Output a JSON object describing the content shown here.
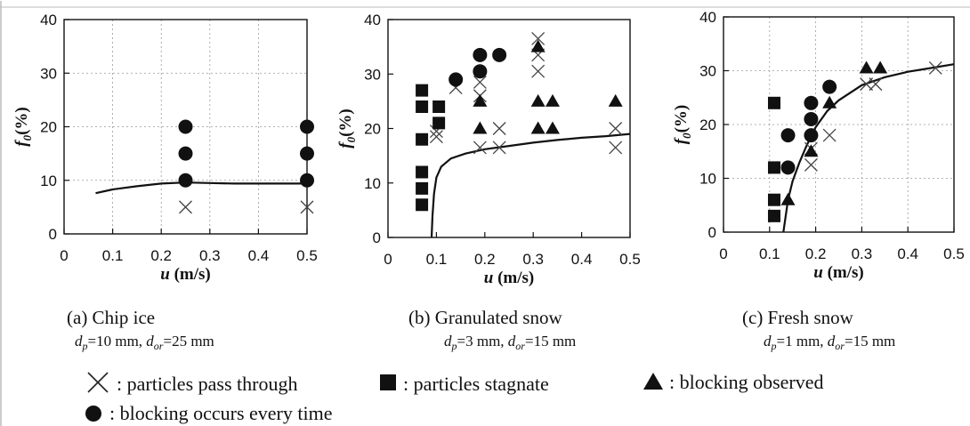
{
  "chart_data": [
    {
      "id": "a",
      "type": "scatter",
      "caption": "(a) Chip ice",
      "params": [
        "10 mm",
        "25 mm"
      ],
      "xlabel": "u (m/s)",
      "ylabel": "f0(%)",
      "xlim": [
        0,
        0.5
      ],
      "ylim": [
        0,
        40
      ],
      "xticks": [
        0,
        0.1,
        0.2,
        0.3,
        0.4,
        0.5
      ],
      "yticks": [
        0,
        10,
        20,
        30,
        40
      ],
      "grid": true,
      "curve": [
        [
          0.065,
          7.6
        ],
        [
          0.1,
          8.3
        ],
        [
          0.15,
          8.9
        ],
        [
          0.2,
          9.4
        ],
        [
          0.25,
          9.6
        ],
        [
          0.3,
          9.5
        ],
        [
          0.35,
          9.4
        ],
        [
          0.4,
          9.4
        ],
        [
          0.45,
          9.4
        ],
        [
          0.5,
          9.4
        ]
      ],
      "points": {
        "pass": [
          [
            0.25,
            5
          ],
          [
            0.5,
            5
          ]
        ],
        "stagnate": [],
        "blocking_observed": [],
        "blocking_every": [
          [
            0.25,
            10
          ],
          [
            0.25,
            15
          ],
          [
            0.25,
            20
          ],
          [
            0.5,
            10
          ],
          [
            0.5,
            15
          ],
          [
            0.5,
            20
          ]
        ]
      }
    },
    {
      "id": "b",
      "type": "scatter",
      "caption": "(b) Granulated snow",
      "params": [
        "3 mm",
        "15 mm"
      ],
      "xlabel": "u (m/s)",
      "ylabel": "f0(%)",
      "xlim": [
        0,
        0.5
      ],
      "ylim": [
        0,
        40
      ],
      "xticks": [
        0,
        0.1,
        0.2,
        0.3,
        0.4,
        0.5
      ],
      "yticks": [
        0,
        10,
        20,
        30,
        40
      ],
      "grid": false,
      "curve": [
        [
          0.09,
          0
        ],
        [
          0.092,
          4
        ],
        [
          0.095,
          8
        ],
        [
          0.1,
          11
        ],
        [
          0.11,
          13
        ],
        [
          0.13,
          14.5
        ],
        [
          0.16,
          15.4
        ],
        [
          0.2,
          16.2
        ],
        [
          0.25,
          16.8
        ],
        [
          0.3,
          17.4
        ],
        [
          0.35,
          17.9
        ],
        [
          0.4,
          18.3
        ],
        [
          0.45,
          18.6
        ],
        [
          0.5,
          19
        ]
      ],
      "points": {
        "pass": [
          [
            0.1,
            18.5
          ],
          [
            0.1,
            19.5
          ],
          [
            0.14,
            27.5
          ],
          [
            0.19,
            16.5
          ],
          [
            0.19,
            26
          ],
          [
            0.19,
            28.5
          ],
          [
            0.23,
            16.5
          ],
          [
            0.23,
            20
          ],
          [
            0.31,
            30.5
          ],
          [
            0.31,
            33.5
          ],
          [
            0.31,
            36.5
          ],
          [
            0.47,
            16.5
          ],
          [
            0.47,
            20
          ]
        ],
        "stagnate": [
          [
            0.07,
            6
          ],
          [
            0.07,
            9
          ],
          [
            0.07,
            12
          ],
          [
            0.07,
            18
          ],
          [
            0.07,
            24
          ],
          [
            0.07,
            27
          ],
          [
            0.105,
            21
          ],
          [
            0.105,
            24
          ]
        ],
        "blocking_observed": [
          [
            0.19,
            20
          ],
          [
            0.19,
            25
          ],
          [
            0.31,
            20
          ],
          [
            0.31,
            25
          ],
          [
            0.31,
            35
          ],
          [
            0.34,
            20
          ],
          [
            0.34,
            25
          ],
          [
            0.47,
            25
          ]
        ],
        "blocking_every": [
          [
            0.14,
            29
          ],
          [
            0.19,
            30.5
          ],
          [
            0.19,
            33.5
          ],
          [
            0.23,
            33.5
          ]
        ]
      }
    },
    {
      "id": "c",
      "type": "scatter",
      "caption": "(c) Fresh snow",
      "params": [
        "1 mm",
        "15 mm"
      ],
      "xlabel": "u (m/s)",
      "ylabel": "f0(%)",
      "xlim": [
        0,
        0.5
      ],
      "ylim": [
        0,
        40
      ],
      "xticks": [
        0,
        0.1,
        0.2,
        0.3,
        0.4,
        0.5
      ],
      "yticks": [
        0,
        10,
        20,
        30,
        40
      ],
      "grid": true,
      "curve": [
        [
          0.13,
          0
        ],
        [
          0.135,
          3
        ],
        [
          0.14,
          6
        ],
        [
          0.15,
          9.5
        ],
        [
          0.165,
          13
        ],
        [
          0.18,
          16
        ],
        [
          0.2,
          19.5
        ],
        [
          0.225,
          22.5
        ],
        [
          0.25,
          24.5
        ],
        [
          0.3,
          27.3
        ],
        [
          0.35,
          28.8
        ],
        [
          0.4,
          29.8
        ],
        [
          0.45,
          30.5
        ],
        [
          0.5,
          31.2
        ]
      ],
      "points": {
        "pass": [
          [
            0.19,
            12.5
          ],
          [
            0.19,
            15.5
          ],
          [
            0.23,
            18
          ],
          [
            0.31,
            27.5
          ],
          [
            0.33,
            27.5
          ],
          [
            0.46,
            30.5
          ]
        ],
        "stagnate": [
          [
            0.11,
            3
          ],
          [
            0.11,
            6
          ],
          [
            0.11,
            12
          ],
          [
            0.11,
            24
          ]
        ],
        "blocking_observed": [
          [
            0.14,
            6
          ],
          [
            0.19,
            15
          ],
          [
            0.23,
            24
          ],
          [
            0.31,
            30.5
          ],
          [
            0.34,
            30.5
          ]
        ],
        "blocking_every": [
          [
            0.14,
            12
          ],
          [
            0.14,
            18
          ],
          [
            0.19,
            18
          ],
          [
            0.19,
            21
          ],
          [
            0.19,
            24
          ],
          [
            0.23,
            27
          ]
        ]
      }
    }
  ],
  "legend": {
    "pass": ": particles pass through",
    "stagnate": ": particles stagnate",
    "blocking_observed": ": blocking observed",
    "blocking_every": ": blocking occurs every time"
  }
}
